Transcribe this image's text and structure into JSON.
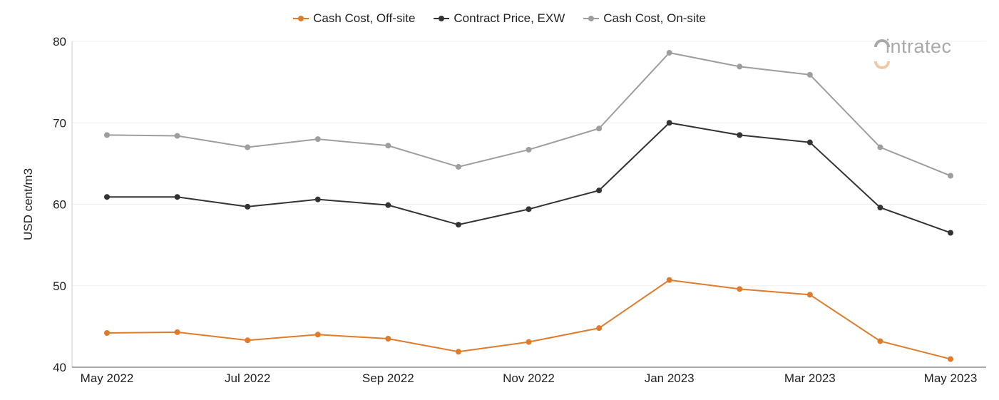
{
  "chart_data": {
    "type": "line",
    "title": "",
    "xlabel": "",
    "ylabel": "USD cent/m3",
    "ylim": [
      40,
      80
    ],
    "yticks": [
      40,
      50,
      60,
      70,
      80
    ],
    "grid": true,
    "legend_position": "top-center",
    "categories": [
      "May 2022",
      "Jun 2022",
      "Jul 2022",
      "Aug 2022",
      "Sep 2022",
      "Oct 2022",
      "Nov 2022",
      "Dec 2022",
      "Jan 2023",
      "Feb 2023",
      "Mar 2023",
      "Apr 2023",
      "May 2023"
    ],
    "x_tick_labels": [
      "May 2022",
      "",
      "Jul 2022",
      "",
      "Sep 2022",
      "",
      "Nov 2022",
      "",
      "Jan 2023",
      "",
      "Mar 2023",
      "",
      "May 2023"
    ],
    "series": [
      {
        "name": "Cash Cost, Off-site",
        "color": "#e07b2a",
        "values": [
          44.2,
          44.3,
          43.3,
          44.0,
          43.5,
          41.9,
          43.1,
          44.8,
          50.7,
          49.6,
          48.9,
          43.2,
          41.0
        ]
      },
      {
        "name": "Contract Price, EXW",
        "color": "#333333",
        "values": [
          60.9,
          60.9,
          59.7,
          60.6,
          59.9,
          57.5,
          59.4,
          61.7,
          70.0,
          68.5,
          67.6,
          59.6,
          56.5
        ]
      },
      {
        "name": "Cash Cost, On-site",
        "color": "#9e9e9e",
        "values": [
          68.5,
          68.4,
          67.0,
          68.0,
          67.2,
          64.6,
          66.7,
          69.3,
          78.6,
          76.9,
          75.9,
          67.0,
          63.5
        ]
      }
    ]
  },
  "watermark": {
    "text": "intratec",
    "icon": "intratec-logo-icon"
  }
}
